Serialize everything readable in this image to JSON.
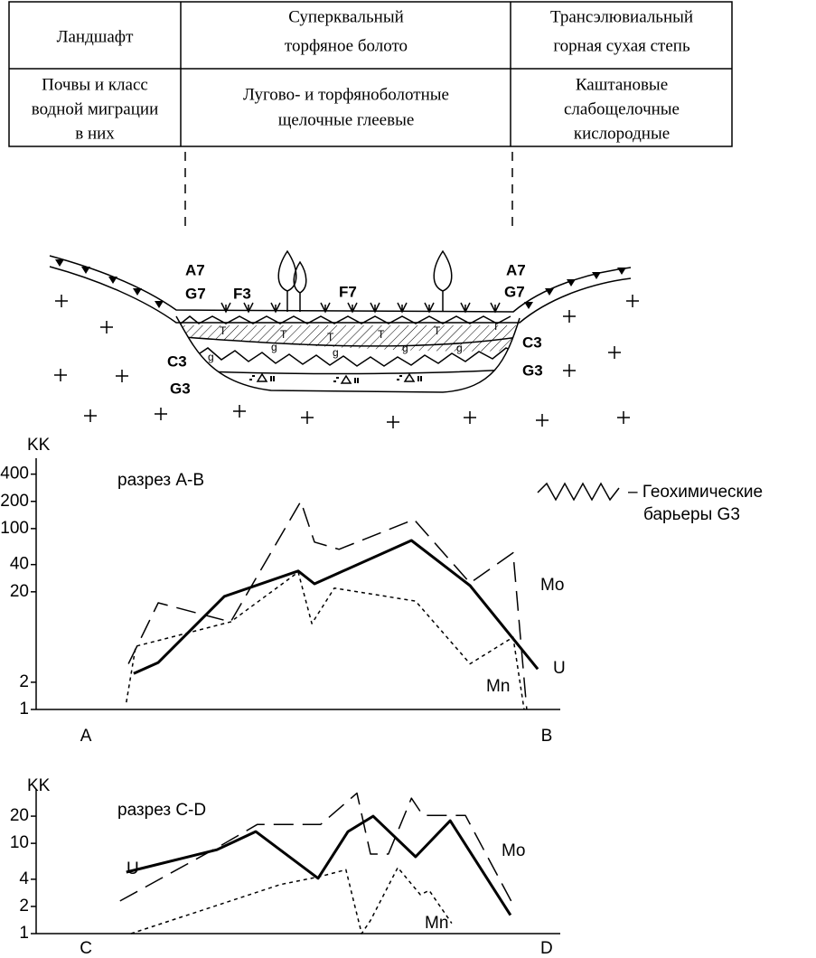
{
  "table": {
    "rows": [
      [
        [
          "Ландшафт"
        ],
        [
          "Суперквальный",
          "торфяное болото"
        ],
        [
          "Трансэлювиальный",
          "горная сухая степь"
        ]
      ],
      [
        [
          "Почвы и класс",
          "водной миграции",
          "в них"
        ],
        [
          "Лугово- и торфяноболотные",
          "щелочные глеевые"
        ],
        [
          "Каштановые",
          "слабощелочные",
          "кислородные"
        ]
      ]
    ]
  },
  "diagram": {
    "labels": {
      "A7": "A7",
      "G7": "G7",
      "F3": "F3",
      "F7": "F7",
      "C3": "C3",
      "G3": "G3"
    },
    "marks": [
      "T",
      "g"
    ],
    "legend": [
      "– Геохимические",
      "барьеры G3"
    ]
  },
  "chart_data": [
    {
      "type": "line",
      "y_label": "KK",
      "subtitle": "разрез А-В",
      "log_scale": true,
      "xlim": [
        0,
        100
      ],
      "xticks": [
        {
          "value": 9.5,
          "label": "A"
        },
        {
          "value": 97.4,
          "label": "B"
        }
      ],
      "ylim": [
        1,
        600
      ],
      "yticks": [
        1,
        2,
        20,
        40,
        100,
        200,
        400
      ],
      "series": [
        {
          "name": "U",
          "color": "#000000",
          "line_style": "solid",
          "x": [
            18.6,
            23.3,
            35.9,
            50,
            53.1,
            71.6,
            82.8,
            95.7
          ],
          "values": [
            2.5,
            3.3,
            17.8,
            34,
            24.5,
            74,
            23.4,
            2.8
          ]
        },
        {
          "name": "Mo",
          "color": "#000000",
          "line_style": "dashed",
          "x": [
            17.6,
            23.3,
            37.1,
            50.5,
            53.1,
            57.8,
            72.1,
            82.8,
            91,
            93.6
          ],
          "values": [
            3.2,
            15.1,
            9.3,
            200,
            71,
            59,
            126,
            25,
            54,
            1
          ]
        },
        {
          "name": "Mn",
          "color": "#000000",
          "line_style": "dotted",
          "x": [
            17.2,
            19,
            37.1,
            50,
            52.6,
            56.9,
            72.4,
            82.8,
            91,
            93.1
          ],
          "values": [
            1.2,
            5,
            9.3,
            33,
            8.9,
            22,
            15.8,
            3.2,
            6.3,
            1
          ]
        }
      ]
    },
    {
      "type": "line",
      "y_label": "KK",
      "subtitle": "разрез C-D",
      "log_scale": true,
      "xlim": [
        0,
        100
      ],
      "xticks": [
        {
          "value": 9.5,
          "label": "C"
        },
        {
          "value": 97.4,
          "label": "D"
        }
      ],
      "ylim": [
        1,
        40
      ],
      "yticks": [
        1,
        2,
        4,
        10,
        20
      ],
      "series": [
        {
          "name": "U",
          "color": "#000000",
          "line_style": "solid",
          "x": [
            17.2,
            34.5,
            41.9,
            53.8,
            59.5,
            64.3,
            72.4,
            79,
            90.5
          ],
          "values": [
            4.8,
            8.5,
            13.5,
            4.1,
            13.5,
            20,
            7.1,
            17.8,
            1.6
          ]
        },
        {
          "name": "Mo",
          "color": "#000000",
          "line_style": "dashed",
          "x": [
            16,
            35.3,
            42.2,
            54.3,
            61.2,
            63.8,
            67.2,
            71.6,
            73.8,
            81.9,
            91.4
          ],
          "values": [
            2.3,
            9.5,
            16.2,
            16.2,
            36,
            7.6,
            7.6,
            31.6,
            20.4,
            20.4,
            1.9
          ]
        },
        {
          "name": "Mn",
          "color": "#000000",
          "line_style": "dotted",
          "x": [
            18.1,
            46.6,
            54.3,
            59.1,
            62.1,
            63.8,
            69,
            73.3,
            75,
            79.3
          ],
          "values": [
            1,
            3.5,
            4.3,
            5.1,
            1,
            1.4,
            5.4,
            2.7,
            3,
            1.3
          ]
        }
      ]
    }
  ]
}
